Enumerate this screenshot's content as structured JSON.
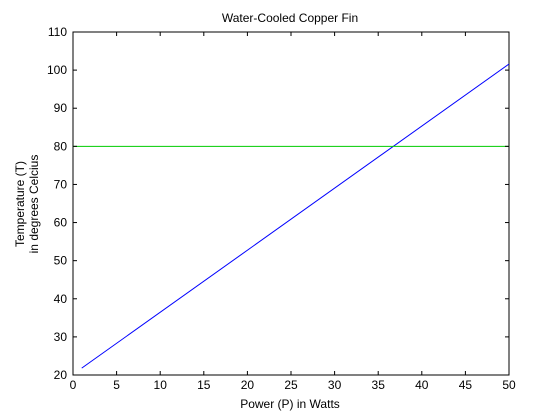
{
  "chart_data": {
    "type": "line",
    "title": "Water-Cooled Copper Fin",
    "xlabel": "Power (P) in Watts",
    "ylabel": [
      "Temperature (T)",
      "in degrees Celcius"
    ],
    "xlim": [
      0,
      50
    ],
    "ylim": [
      20,
      110
    ],
    "xticks": [
      0,
      5,
      10,
      15,
      20,
      25,
      30,
      35,
      40,
      45,
      50
    ],
    "yticks": [
      20,
      30,
      40,
      50,
      60,
      70,
      80,
      90,
      100,
      110
    ],
    "grid": false,
    "legend": "none",
    "series": [
      {
        "x": [
          1,
          50
        ],
        "y": [
          21.8,
          101.6
        ],
        "color": "#0000ff"
      },
      {
        "x": [
          0,
          50
        ],
        "y": [
          80,
          80
        ],
        "color": "#00cc00"
      }
    ]
  }
}
